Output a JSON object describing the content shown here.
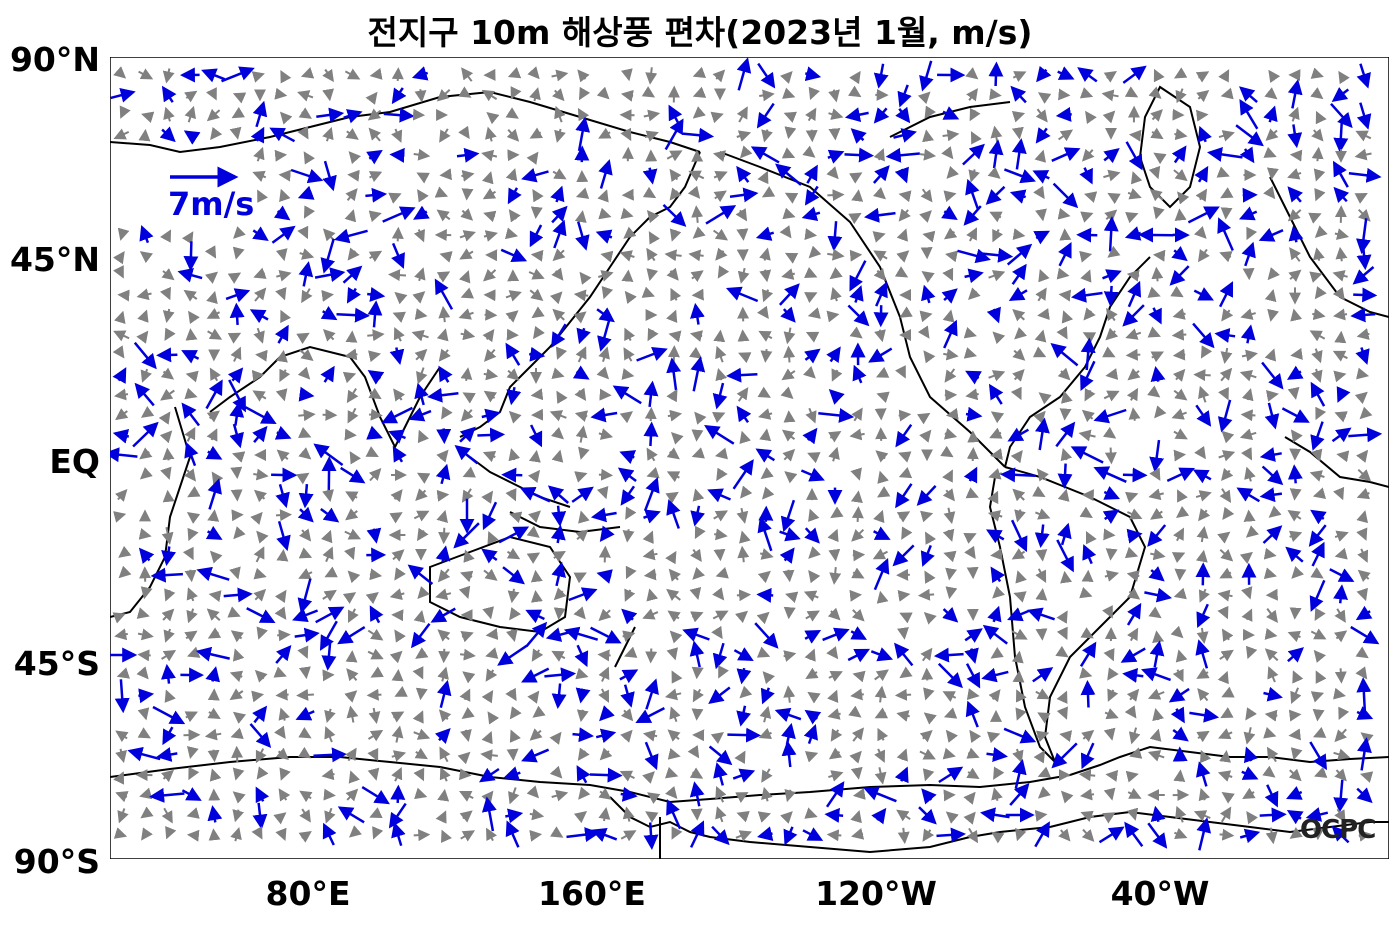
{
  "title": "전지구 10m 해상풍 편차(2023년 1월, m/s)",
  "lat_labels": [
    "90°N",
    "45°N",
    "EQ",
    "45°S",
    "90°S"
  ],
  "lon_labels": [
    "80°E",
    "160°E",
    "120°W",
    "40°W"
  ],
  "reference_vector": "7m/s",
  "logo": "OCPC",
  "colors": {
    "strong_anomaly": "#0000dd",
    "weak_anomaly": "#808080",
    "coastline": "#000000"
  }
}
